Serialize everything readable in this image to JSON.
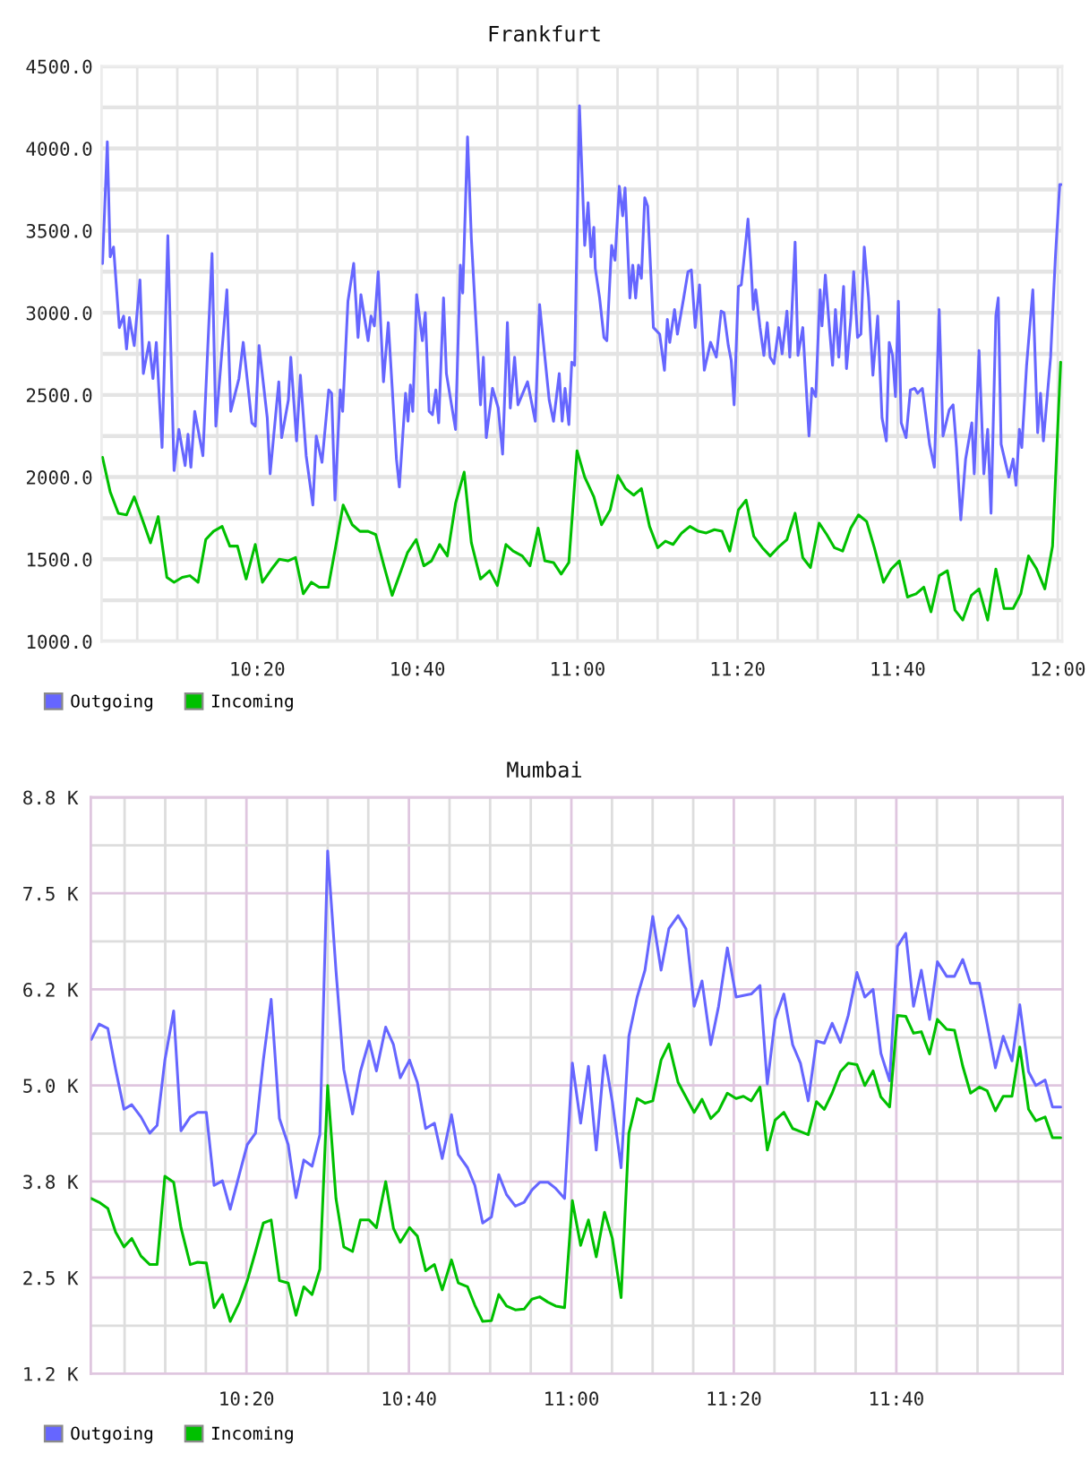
{
  "chart_data": [
    {
      "type": "line",
      "title": "Frankfurt",
      "xlim": [
        10.009,
        12.009
      ],
      "xticks": [
        {
          "value": 10.0833,
          "label": null
        },
        {
          "value": 10.1667,
          "label": null
        },
        {
          "value": 10.25,
          "label": null
        },
        {
          "value": 10.3333,
          "label": "10:20"
        },
        {
          "value": 10.4167,
          "label": null
        },
        {
          "value": 10.5,
          "label": null
        },
        {
          "value": 10.5833,
          "label": null
        },
        {
          "value": 10.6667,
          "label": "10:40"
        },
        {
          "value": 10.75,
          "label": null
        },
        {
          "value": 10.8333,
          "label": null
        },
        {
          "value": 10.9167,
          "label": null
        },
        {
          "value": 11,
          "label": "11:00"
        },
        {
          "value": 11.0833,
          "label": null
        },
        {
          "value": 11.1667,
          "label": null
        },
        {
          "value": 11.25,
          "label": null
        },
        {
          "value": 11.3333,
          "label": "11:20"
        },
        {
          "value": 11.4167,
          "label": null
        },
        {
          "value": 11.5,
          "label": null
        },
        {
          "value": 11.5833,
          "label": null
        },
        {
          "value": 11.6667,
          "label": "11:40"
        },
        {
          "value": 11.75,
          "label": null
        },
        {
          "value": 11.8333,
          "label": null
        },
        {
          "value": 11.9167,
          "label": null
        },
        {
          "value": 12,
          "label": "12:00"
        }
      ],
      "ylim": [
        1000,
        4500
      ],
      "yticks": [
        {
          "value": 1000,
          "label": "1000.0"
        },
        {
          "value": 1250,
          "label": null
        },
        {
          "value": 1500,
          "label": "1500.0"
        },
        {
          "value": 1750,
          "label": null
        },
        {
          "value": 2000,
          "label": "2000.0"
        },
        {
          "value": 2250,
          "label": null
        },
        {
          "value": 2500,
          "label": "2500.0"
        },
        {
          "value": 2750,
          "label": null
        },
        {
          "value": 3000,
          "label": "3000.0"
        },
        {
          "value": 3250,
          "label": null
        },
        {
          "value": 3500,
          "label": "3500.0"
        },
        {
          "value": 3750,
          "label": null
        },
        {
          "value": 4000,
          "label": "4000.0"
        },
        {
          "value": 4250,
          "label": null
        },
        {
          "value": 4500,
          "label": "4500.0"
        }
      ],
      "grid": true,
      "legend": "bottom left",
      "series": [
        {
          "name": "Outgoing",
          "color": "#6666ff",
          "x": [
            10.011,
            10.021,
            10.027,
            10.034,
            10.046,
            10.055,
            10.061,
            10.067,
            10.077,
            10.089,
            10.096,
            10.108,
            10.116,
            10.123,
            10.135,
            10.147,
            10.16,
            10.17,
            10.183,
            10.189,
            10.195,
            10.203,
            10.22,
            10.239,
            10.247,
            10.27,
            10.278,
            10.295,
            10.304,
            10.322,
            10.329,
            10.337,
            10.354,
            10.36,
            10.378,
            10.384,
            10.398,
            10.403,
            10.415,
            10.423,
            10.435,
            10.449,
            10.456,
            10.468,
            10.482,
            10.488,
            10.495,
            10.506,
            10.511,
            10.522,
            10.534,
            10.543,
            10.549,
            10.564,
            10.57,
            10.577,
            10.585,
            10.596,
            10.606,
            10.623,
            10.629,
            10.642,
            10.647,
            10.652,
            10.657,
            10.665,
            10.677,
            10.683,
            10.691,
            10.698,
            10.705,
            10.711,
            10.721,
            10.727,
            10.746,
            10.756,
            10.761,
            10.771,
            10.779,
            10.798,
            10.804,
            10.81,
            10.823,
            10.835,
            10.844,
            10.854,
            10.86,
            10.869,
            10.876,
            10.896,
            10.912,
            10.921,
            10.941,
            10.95,
            10.962,
            10.968,
            10.974,
            10.982,
            10.988,
            10.994,
            11.004,
            11.015,
            11.022,
            11.028,
            11.034,
            11.037,
            11.046,
            11.055,
            11.061,
            11.071,
            11.078,
            11.087,
            11.094,
            11.099,
            11.109,
            11.115,
            11.121,
            11.127,
            11.133,
            11.14,
            11.146,
            11.158,
            11.171,
            11.181,
            11.187,
            11.192,
            11.202,
            11.208,
            11.221,
            11.23,
            11.237,
            11.245,
            11.254,
            11.264,
            11.277,
            11.289,
            11.299,
            11.305,
            11.314,
            11.32,
            11.326,
            11.335,
            11.341,
            11.351,
            11.355,
            11.361,
            11.366,
            11.371,
            11.38,
            11.388,
            11.395,
            11.401,
            11.409,
            11.419,
            11.426,
            11.436,
            11.442,
            11.453,
            11.459,
            11.469,
            11.482,
            11.488,
            11.496,
            11.505,
            11.509,
            11.516,
            11.525,
            11.531,
            11.537,
            11.544,
            11.554,
            11.56,
            11.569,
            11.575,
            11.583,
            11.59,
            11.597,
            11.606,
            11.615,
            11.625,
            11.634,
            11.643,
            11.649,
            11.656,
            11.662,
            11.668,
            11.674,
            11.684,
            11.693,
            11.702,
            11.708,
            11.718,
            11.733,
            11.743,
            11.753,
            11.761,
            11.774,
            11.782,
            11.789,
            11.798,
            11.808,
            11.821,
            11.826,
            11.836,
            11.846,
            11.854,
            11.861,
            11.871,
            11.876,
            11.882,
            11.898,
            11.907,
            11.913,
            11.92,
            11.925,
            11.935,
            11.948,
            11.958,
            11.964,
            11.97,
            11.985,
            11.995,
            12.004,
            12.007
          ],
          "values": [
            3300,
            4040,
            3340,
            3400,
            2910,
            2980,
            2780,
            2970,
            2800,
            3200,
            2630,
            2820,
            2600,
            2820,
            2180,
            3470,
            2040,
            2290,
            2070,
            2260,
            2060,
            2400,
            2130,
            3360,
            2310,
            3140,
            2400,
            2600,
            2820,
            2330,
            2310,
            2800,
            2360,
            2020,
            2580,
            2240,
            2470,
            2730,
            2220,
            2620,
            2130,
            1830,
            2250,
            2090,
            2530,
            2510,
            1860,
            2530,
            2400,
            3070,
            3300,
            2850,
            3110,
            2830,
            2980,
            2920,
            3250,
            2580,
            2940,
            2110,
            1940,
            2510,
            2340,
            2560,
            2400,
            3110,
            2830,
            3000,
            2400,
            2380,
            2530,
            2330,
            3090,
            2630,
            2290,
            3290,
            3120,
            4070,
            3450,
            2440,
            2730,
            2240,
            2540,
            2420,
            2140,
            2940,
            2420,
            2730,
            2440,
            2580,
            2340,
            3050,
            2470,
            2340,
            2630,
            2340,
            2540,
            2320,
            2700,
            2680,
            4260,
            3410,
            3670,
            3340,
            3520,
            3270,
            3090,
            2850,
            2830,
            3410,
            3320,
            3770,
            3590,
            3760,
            3090,
            3290,
            3090,
            3290,
            3210,
            3700,
            3650,
            2910,
            2870,
            2650,
            2960,
            2820,
            3020,
            2870,
            3090,
            3250,
            3260,
            2910,
            3170,
            2650,
            2820,
            2730,
            3010,
            3000,
            2800,
            2710,
            2440,
            3160,
            3170,
            3450,
            3570,
            3300,
            3020,
            3140,
            2910,
            2740,
            2940,
            2730,
            2690,
            2910,
            2750,
            3010,
            2730,
            3430,
            2740,
            2910,
            2250,
            2540,
            2490,
            3140,
            2920,
            3230,
            2890,
            2680,
            3020,
            2730,
            3160,
            2660,
            2960,
            3250,
            2850,
            2870,
            3400,
            3090,
            2620,
            2980,
            2360,
            2220,
            2820,
            2740,
            2490,
            3070,
            2330,
            2240,
            2530,
            2540,
            2510,
            2540,
            2200,
            2060,
            3020,
            2250,
            2410,
            2440,
            2180,
            1740,
            2110,
            2330,
            2020,
            2770,
            2020,
            2290,
            1780,
            2980,
            3090,
            2200,
            2000,
            2110,
            1950,
            2290,
            2180,
            2680,
            3140,
            2270,
            2510,
            2220,
            2730,
            3340,
            3780,
            3780
          ]
        },
        {
          "name": "Incoming",
          "color": "#00c000",
          "x": [
            10.011,
            10.027,
            10.044,
            10.061,
            10.077,
            10.093,
            10.111,
            10.127,
            10.145,
            10.16,
            10.177,
            10.193,
            10.21,
            10.226,
            10.242,
            10.26,
            10.276,
            10.292,
            10.31,
            10.329,
            10.344,
            10.363,
            10.379,
            10.397,
            10.413,
            10.429,
            10.446,
            10.462,
            10.481,
            10.496,
            10.512,
            10.531,
            10.547,
            10.564,
            10.58,
            10.597,
            10.614,
            10.63,
            10.646,
            10.664,
            10.68,
            10.696,
            10.713,
            10.729,
            10.746,
            10.764,
            10.779,
            10.798,
            10.817,
            10.833,
            10.851,
            10.866,
            10.885,
            10.901,
            10.918,
            10.932,
            10.95,
            10.966,
            10.982,
            10.999,
            11.015,
            11.034,
            11.05,
            11.068,
            11.084,
            11.1,
            11.117,
            11.133,
            11.15,
            11.167,
            11.183,
            11.199,
            11.217,
            11.234,
            11.252,
            11.268,
            11.285,
            11.301,
            11.317,
            11.335,
            11.351,
            11.367,
            11.385,
            11.401,
            11.417,
            11.436,
            11.453,
            11.469,
            11.485,
            11.503,
            11.519,
            11.535,
            11.552,
            11.569,
            11.585,
            11.602,
            11.618,
            11.637,
            11.653,
            11.67,
            11.687,
            11.705,
            11.721,
            11.736,
            11.753,
            11.77,
            11.786,
            11.802,
            11.82,
            11.836,
            11.854,
            11.871,
            11.888,
            11.907,
            11.923,
            11.939,
            11.956,
            11.973,
            11.989,
            12.006
          ],
          "values": [
            2120,
            1910,
            1780,
            1770,
            1880,
            1750,
            1600,
            1760,
            1390,
            1360,
            1390,
            1400,
            1360,
            1620,
            1670,
            1700,
            1580,
            1580,
            1380,
            1590,
            1360,
            1440,
            1500,
            1490,
            1510,
            1290,
            1360,
            1330,
            1330,
            1570,
            1830,
            1710,
            1670,
            1670,
            1650,
            1460,
            1280,
            1410,
            1540,
            1620,
            1460,
            1490,
            1590,
            1520,
            1840,
            2030,
            1600,
            1380,
            1430,
            1340,
            1590,
            1550,
            1520,
            1460,
            1690,
            1490,
            1480,
            1410,
            1480,
            2160,
            2000,
            1880,
            1710,
            1800,
            2010,
            1930,
            1890,
            1930,
            1700,
            1570,
            1610,
            1590,
            1660,
            1700,
            1670,
            1660,
            1680,
            1670,
            1550,
            1800,
            1860,
            1640,
            1570,
            1520,
            1570,
            1620,
            1780,
            1510,
            1450,
            1720,
            1650,
            1570,
            1550,
            1690,
            1770,
            1730,
            1570,
            1360,
            1440,
            1490,
            1270,
            1290,
            1330,
            1180,
            1400,
            1430,
            1190,
            1130,
            1280,
            1320,
            1130,
            1440,
            1200,
            1200,
            1290,
            1520,
            1440,
            1320,
            1580,
            2700
          ]
        }
      ]
    },
    {
      "type": "line",
      "title": "Mumbai",
      "xlim": [
        10.014,
        12.008
      ],
      "xticks": [
        {
          "value": 10.0833,
          "label": null
        },
        {
          "value": 10.1667,
          "label": null
        },
        {
          "value": 10.25,
          "label": null
        },
        {
          "value": 10.3333,
          "label": "10:20"
        },
        {
          "value": 10.4167,
          "label": null
        },
        {
          "value": 10.5,
          "label": null
        },
        {
          "value": 10.5833,
          "label": null
        },
        {
          "value": 10.6667,
          "label": "10:40"
        },
        {
          "value": 10.75,
          "label": null
        },
        {
          "value": 10.8333,
          "label": null
        },
        {
          "value": 10.9167,
          "label": null
        },
        {
          "value": 11,
          "label": "11:00"
        },
        {
          "value": 11.0833,
          "label": null
        },
        {
          "value": 11.1667,
          "label": null
        },
        {
          "value": 11.25,
          "label": null
        },
        {
          "value": 11.3333,
          "label": "11:20"
        },
        {
          "value": 11.4167,
          "label": null
        },
        {
          "value": 11.5,
          "label": null
        },
        {
          "value": 11.5833,
          "label": null
        },
        {
          "value": 11.6667,
          "label": "11:40"
        },
        {
          "value": 11.75,
          "label": null
        },
        {
          "value": 11.8333,
          "label": null
        },
        {
          "value": 11.9167,
          "label": null
        }
      ],
      "ylim": [
        1250,
        8750
      ],
      "yticks": [
        {
          "value": 1250,
          "label": "1.2 K"
        },
        {
          "value": 1875,
          "label": null
        },
        {
          "value": 2500,
          "label": "2.5 K"
        },
        {
          "value": 3125,
          "label": null
        },
        {
          "value": 3750,
          "label": "3.8 K"
        },
        {
          "value": 4375,
          "label": null
        },
        {
          "value": 5000,
          "label": "5.0 K"
        },
        {
          "value": 5625,
          "label": null
        },
        {
          "value": 6250,
          "label": "6.2 K"
        },
        {
          "value": 6875,
          "label": null
        },
        {
          "value": 7500,
          "label": "7.5 K"
        },
        {
          "value": 8125,
          "label": null
        },
        {
          "value": 8750,
          "label": "8.8 K"
        }
      ],
      "grid": true,
      "legend": "bottom left",
      "x": [
        10.015,
        10.031,
        10.049,
        10.065,
        10.082,
        10.098,
        10.117,
        10.135,
        10.15,
        10.166,
        10.184,
        10.199,
        10.218,
        10.233,
        10.251,
        10.267,
        10.284,
        10.3,
        10.319,
        10.335,
        10.352,
        10.368,
        10.384,
        10.401,
        10.419,
        10.435,
        10.451,
        10.468,
        10.484,
        10.5,
        10.517,
        10.533,
        10.551,
        10.567,
        10.585,
        10.6,
        10.619,
        10.635,
        10.649,
        10.668,
        10.684,
        10.701,
        10.719,
        10.735,
        10.754,
        10.768,
        10.787,
        10.802,
        10.818,
        10.836,
        10.851,
        10.867,
        10.885,
        10.903,
        10.919,
        10.935,
        10.952,
        10.968,
        10.986,
        11.002,
        11.019,
        11.035,
        11.051,
        11.068,
        11.084,
        11.102,
        11.118,
        11.135,
        11.151,
        11.167,
        11.184,
        11.2,
        11.219,
        11.235,
        11.252,
        11.268,
        11.286,
        11.302,
        11.32,
        11.338,
        11.353,
        11.369,
        11.387,
        11.402,
        11.418,
        11.436,
        11.454,
        11.47,
        11.486,
        11.503,
        11.519,
        11.535,
        11.552,
        11.568,
        11.586,
        11.602,
        11.619,
        11.635,
        11.653,
        11.669,
        11.686,
        11.702,
        11.718,
        11.735,
        11.751,
        11.77,
        11.786,
        11.803,
        11.819,
        11.837,
        11.853,
        11.87,
        11.886,
        11.904,
        11.92,
        11.938,
        11.953,
        11.972,
        11.987,
        12.004
      ],
      "series": [
        {
          "name": "Outgoing",
          "color": "#6666ff",
          "values": [
            5600,
            5800,
            5740,
            5210,
            4690,
            4750,
            4590,
            4380,
            4480,
            5330,
            5970,
            4410,
            4590,
            4650,
            4650,
            3700,
            3760,
            3390,
            3850,
            4230,
            4380,
            5330,
            6120,
            4570,
            4230,
            3540,
            4030,
            3950,
            4360,
            8050,
            6500,
            5210,
            4630,
            5180,
            5580,
            5190,
            5760,
            5530,
            5100,
            5330,
            5040,
            4440,
            4510,
            4050,
            4620,
            4100,
            3930,
            3700,
            3210,
            3290,
            3840,
            3580,
            3430,
            3480,
            3640,
            3740,
            3740,
            3660,
            3530,
            5290,
            4510,
            5250,
            4160,
            5390,
            4790,
            3930,
            5640,
            6150,
            6500,
            7200,
            6500,
            7040,
            7210,
            7040,
            6030,
            6360,
            5530,
            6030,
            6790,
            6150,
            6170,
            6190,
            6300,
            5020,
            5860,
            6190,
            5530,
            5290,
            4800,
            5580,
            5550,
            5810,
            5560,
            5910,
            6470,
            6150,
            6250,
            5420,
            5060,
            6810,
            6980,
            6030,
            6500,
            5860,
            6610,
            6420,
            6420,
            6640,
            6330,
            6330,
            5800,
            5230,
            5640,
            5320,
            6050,
            5180,
            5000,
            5070,
            4720,
            4720
          ]
        },
        {
          "name": "Incoming",
          "color": "#00c000",
          "values": [
            3530,
            3480,
            3400,
            3090,
            2900,
            3010,
            2780,
            2670,
            2670,
            3820,
            3740,
            3150,
            2670,
            2700,
            2690,
            2110,
            2280,
            1930,
            2180,
            2460,
            2840,
            3210,
            3250,
            2460,
            2430,
            2010,
            2380,
            2280,
            2610,
            5000,
            3530,
            2900,
            2840,
            3250,
            3250,
            3150,
            3750,
            3140,
            2960,
            3150,
            3040,
            2590,
            2670,
            2340,
            2730,
            2430,
            2380,
            2140,
            1930,
            1940,
            2280,
            2130,
            2080,
            2090,
            2220,
            2250,
            2180,
            2130,
            2110,
            3500,
            2920,
            3250,
            2770,
            3350,
            3010,
            2240,
            4380,
            4830,
            4770,
            4800,
            5330,
            5540,
            5040,
            4850,
            4650,
            4820,
            4570,
            4670,
            4900,
            4830,
            4860,
            4800,
            4980,
            4160,
            4550,
            4650,
            4440,
            4400,
            4360,
            4790,
            4690,
            4900,
            5180,
            5290,
            5270,
            5000,
            5190,
            4850,
            4720,
            5910,
            5900,
            5680,
            5700,
            5410,
            5860,
            5730,
            5720,
            5250,
            4900,
            4980,
            4930,
            4670,
            4860,
            4860,
            5500,
            4690,
            4540,
            4590,
            4320,
            4320
          ]
        }
      ]
    }
  ]
}
